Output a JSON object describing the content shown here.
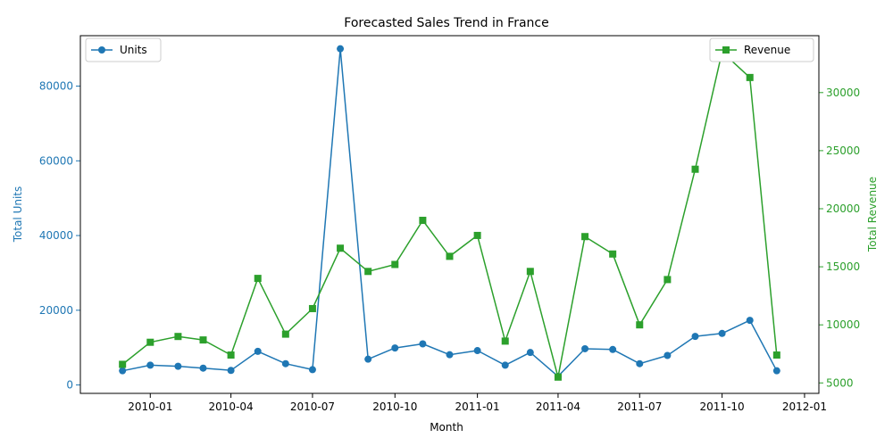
{
  "chart_data": {
    "type": "line",
    "title": "Forecasted Sales Trend in France",
    "xlabel": "Month",
    "ylabel_left": "Total Units",
    "ylabel_right": "Total Revenue",
    "x_ticks": [
      "2010-01",
      "2010-04",
      "2010-07",
      "2010-10",
      "2011-01",
      "2011-04",
      "2011-07",
      "2011-10",
      "2012-01"
    ],
    "y_left_ticks": [
      0,
      20000,
      40000,
      60000,
      80000
    ],
    "y_left_lim": [
      -2250,
      93500
    ],
    "y_right_ticks": [
      5000,
      10000,
      15000,
      20000,
      25000,
      30000
    ],
    "y_right_lim": [
      4100,
      34900
    ],
    "x": [
      "2009-12-01",
      "2010-01-01",
      "2010-02-01",
      "2010-03-01",
      "2010-04-01",
      "2010-05-01",
      "2010-06-01",
      "2010-07-01",
      "2010-08-01",
      "2010-09-01",
      "2010-10-01",
      "2010-11-01",
      "2010-12-01",
      "2011-01-01",
      "2011-02-01",
      "2011-03-01",
      "2011-04-01",
      "2011-05-01",
      "2011-06-01",
      "2011-07-01",
      "2011-08-01",
      "2011-09-01",
      "2011-10-01",
      "2011-11-01",
      "2011-12-01"
    ],
    "series": [
      {
        "name": "Units",
        "axis": "left",
        "marker": "circle",
        "color": "#1f77b4",
        "values": [
          3800,
          5300,
          5000,
          4500,
          3900,
          9000,
          5700,
          4100,
          90000,
          6900,
          9900,
          11000,
          8100,
          9200,
          5300,
          8700,
          2300,
          9700,
          9500,
          5700,
          7900,
          13000,
          13800,
          17300,
          3800
        ]
      },
      {
        "name": "Revenue",
        "axis": "right",
        "marker": "square",
        "color": "#2ca02c",
        "values": [
          6600,
          8500,
          9000,
          8700,
          7400,
          14000,
          9200,
          11400,
          16600,
          14600,
          15200,
          19000,
          15900,
          17700,
          8600,
          14600,
          5500,
          17600,
          16100,
          10000,
          13900,
          23400,
          33500,
          31300,
          7400
        ]
      }
    ],
    "legend_left_position": "upper-left",
    "legend_right_position": "upper-right",
    "grid": false
  }
}
